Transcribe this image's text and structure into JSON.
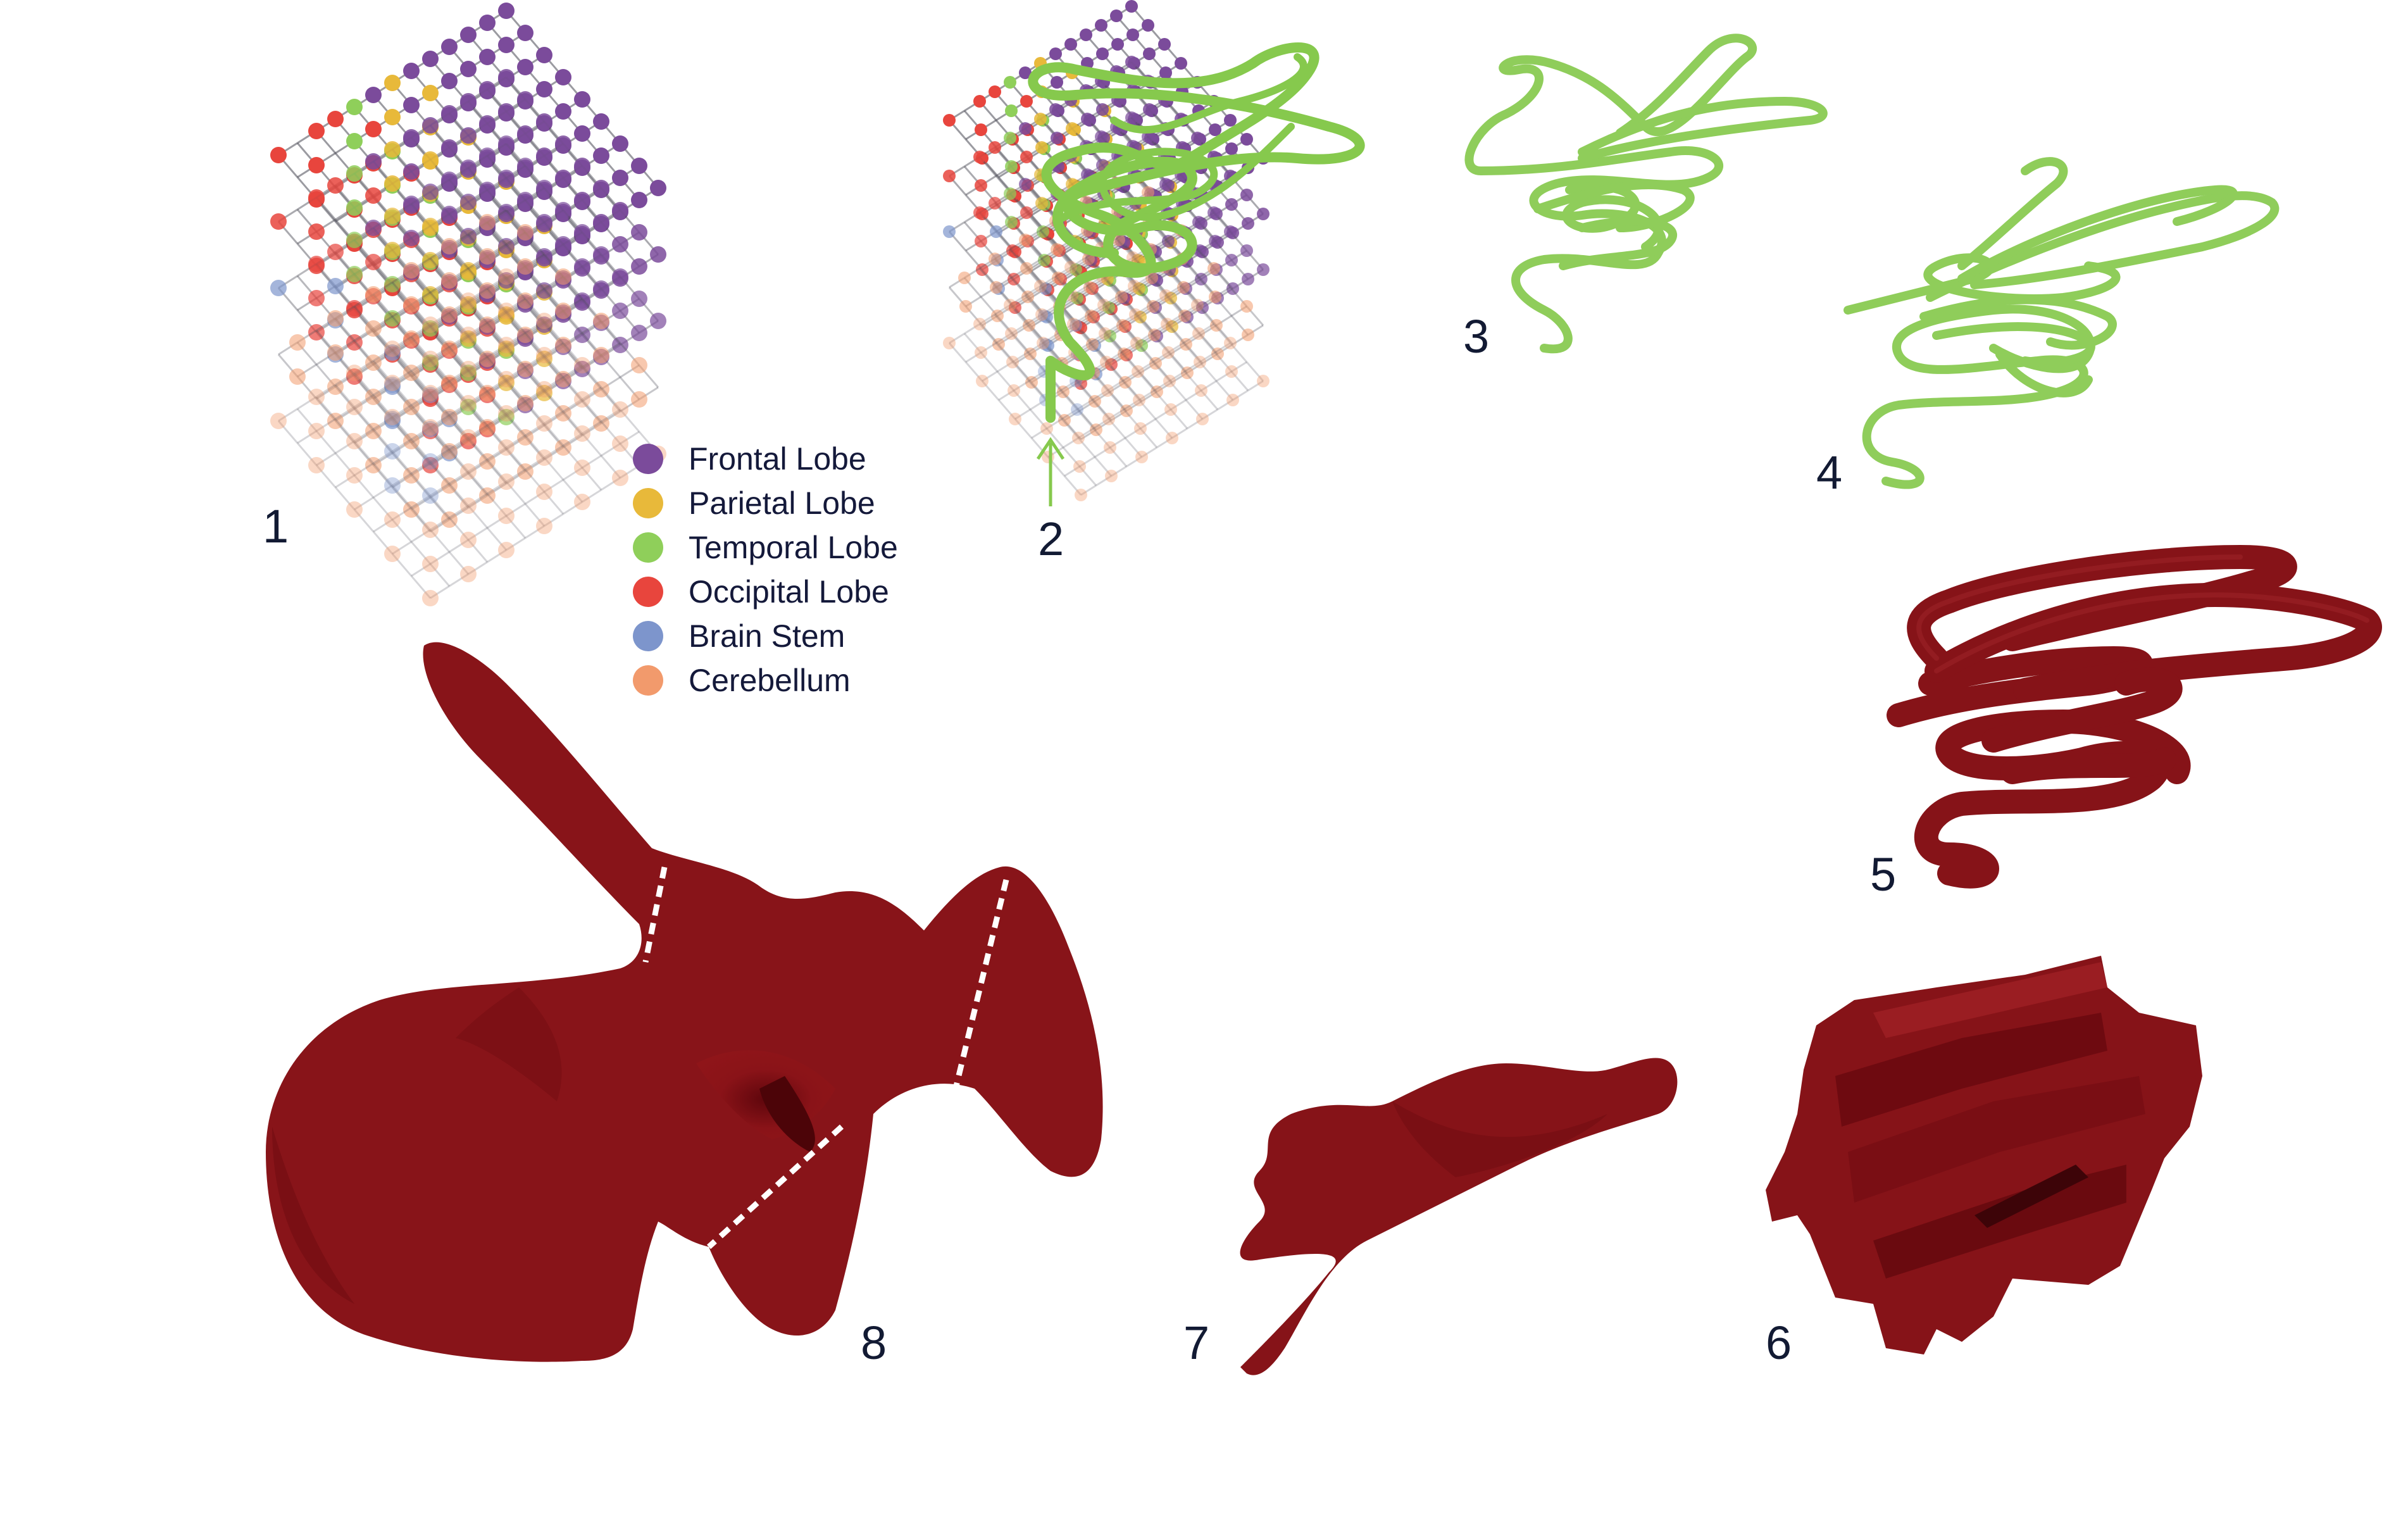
{
  "legend": {
    "items": [
      {
        "label": "Frontal Lobe",
        "color": "#7b4b9b"
      },
      {
        "label": "Parietal Lobe",
        "color": "#e8b93a"
      },
      {
        "label": "Temporal Lobe",
        "color": "#8fcf5a"
      },
      {
        "label": "Occipital Lobe",
        "color": "#e8453d"
      },
      {
        "label": "Brain Stem",
        "color": "#7d95cc"
      },
      {
        "label": "Cerebellum",
        "color": "#f29a6c"
      }
    ]
  },
  "steps": {
    "s1": "1",
    "s2": "2",
    "s3": "3",
    "s4": "4",
    "s5": "5",
    "s6": "6",
    "s7": "7",
    "s8": "8"
  },
  "colors": {
    "curve": "#86c94d",
    "solid": "#861318",
    "grid_line": "#4a4a55"
  }
}
